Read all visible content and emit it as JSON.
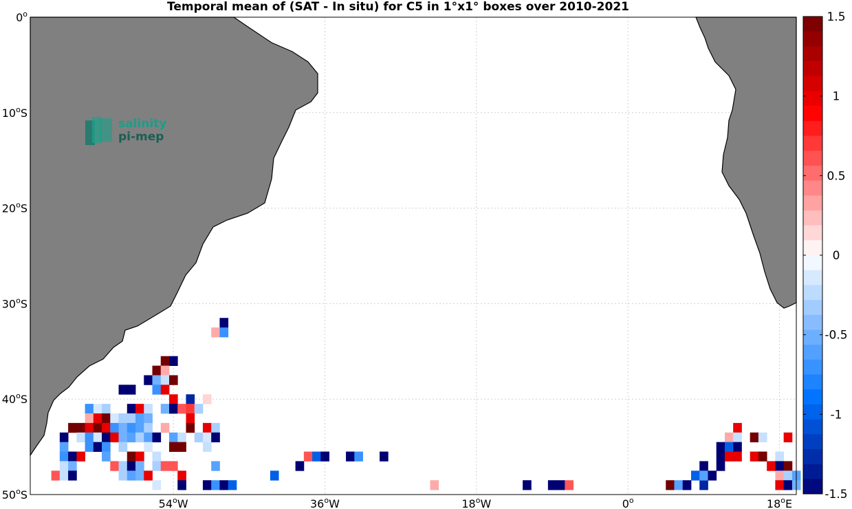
{
  "title": "Temporal mean of (SAT - In situ) for C5 in 1°x1° boxes over 2010-2021",
  "logo": {
    "line1": "salinity",
    "line2": "pi-mep"
  },
  "lat_ticks": [
    {
      "label": "0",
      "sup": "o",
      "suffix": "",
      "value": 0
    },
    {
      "label": "10",
      "sup": "o",
      "suffix": "S",
      "value": -10
    },
    {
      "label": "20",
      "sup": "o",
      "suffix": "S",
      "value": -20
    },
    {
      "label": "30",
      "sup": "o",
      "suffix": "S",
      "value": -30
    },
    {
      "label": "40",
      "sup": "o",
      "suffix": "S",
      "value": -40
    },
    {
      "label": "50",
      "sup": "o",
      "suffix": "S",
      "value": -50
    }
  ],
  "lon_ticks": [
    {
      "label": "54",
      "sup": "o",
      "suffix": "W",
      "value": -54
    },
    {
      "label": "36",
      "sup": "o",
      "suffix": "W",
      "value": -36
    },
    {
      "label": "18",
      "sup": "o",
      "suffix": "W",
      "value": -18
    },
    {
      "label": "0",
      "sup": "o",
      "suffix": "",
      "value": 0
    },
    {
      "label": "18",
      "sup": "o",
      "suffix": "E",
      "value": 18
    }
  ],
  "colorbar": {
    "min": -1.5,
    "max": 1.5,
    "steps": 32,
    "tick_labels": [
      "1.5",
      "1",
      "0.5",
      "0",
      "-0.5",
      "-1",
      "-1.5"
    ],
    "tick_values": [
      1.5,
      1,
      0.5,
      0,
      -0.5,
      -1,
      -1.5
    ]
  },
  "colors": {
    "land": "#808080",
    "grid": "#d0d0d0",
    "logo_teal": "#1a9e8a",
    "logo_dark": "#1b5e55"
  },
  "chart_data": {
    "type": "heatmap",
    "title": "Temporal mean of (SAT - In situ) for C5 in 1°x1° boxes over 2010-2021",
    "xlim": [
      -71,
      20
    ],
    "ylim": [
      -50,
      0
    ],
    "cells": [
      {
        "lon": -48,
        "lat": -32,
        "v": -1.5
      },
      {
        "lon": -49,
        "lat": -33,
        "v": 0.3
      },
      {
        "lon": -48,
        "lat": -33,
        "v": -0.7
      },
      {
        "lon": -55,
        "lat": -36,
        "v": 1.5
      },
      {
        "lon": -54,
        "lat": -36,
        "v": -1.5
      },
      {
        "lon": -56,
        "lat": -37,
        "v": 1.5
      },
      {
        "lon": -55,
        "lat": -37,
        "v": 0.3
      },
      {
        "lon": -57,
        "lat": -38,
        "v": -1.5
      },
      {
        "lon": -56,
        "lat": -38,
        "v": -0.5
      },
      {
        "lon": -55,
        "lat": -38,
        "v": -0.2
      },
      {
        "lon": -54,
        "lat": -38,
        "v": 1.5
      },
      {
        "lon": -60,
        "lat": -39,
        "v": -1.5
      },
      {
        "lon": -59,
        "lat": -39,
        "v": -1.5
      },
      {
        "lon": -56,
        "lat": -39,
        "v": -0.7
      },
      {
        "lon": -55,
        "lat": -39,
        "v": 1.0
      },
      {
        "lon": -54,
        "lat": -40,
        "v": 1.0
      },
      {
        "lon": -52,
        "lat": -40,
        "v": -1.3
      },
      {
        "lon": -50,
        "lat": -40,
        "v": 0.15
      },
      {
        "lon": -64,
        "lat": -41,
        "v": -0.7
      },
      {
        "lon": -63,
        "lat": -41,
        "v": -0.15
      },
      {
        "lon": -62,
        "lat": -41,
        "v": -0.3
      },
      {
        "lon": -59,
        "lat": -41,
        "v": -1.5
      },
      {
        "lon": -58,
        "lat": -41,
        "v": 1.0
      },
      {
        "lon": -57,
        "lat": -41,
        "v": -0.2
      },
      {
        "lon": -55,
        "lat": -41,
        "v": -0.5
      },
      {
        "lon": -54,
        "lat": -41,
        "v": -1.5
      },
      {
        "lon": -53,
        "lat": -41,
        "v": 0.6
      },
      {
        "lon": -52,
        "lat": -41,
        "v": 0.7
      },
      {
        "lon": -51,
        "lat": -41,
        "v": -0.3
      },
      {
        "lon": -64,
        "lat": -42,
        "v": 0.3
      },
      {
        "lon": -63,
        "lat": -42,
        "v": 1.0
      },
      {
        "lon": -62,
        "lat": -42,
        "v": 1.5
      },
      {
        "lon": -61,
        "lat": -42,
        "v": -0.15
      },
      {
        "lon": -60,
        "lat": -42,
        "v": -0.3
      },
      {
        "lon": -59,
        "lat": -42,
        "v": -0.3
      },
      {
        "lon": -58,
        "lat": -42,
        "v": -0.6
      },
      {
        "lon": -57,
        "lat": -42,
        "v": -0.5
      },
      {
        "lon": -52,
        "lat": -42,
        "v": 1.0
      },
      {
        "lon": -66,
        "lat": -43,
        "v": 1.5
      },
      {
        "lon": -65,
        "lat": -43,
        "v": 1.5
      },
      {
        "lon": -64,
        "lat": -43,
        "v": 1.0
      },
      {
        "lon": -63,
        "lat": -43,
        "v": 1.5
      },
      {
        "lon": -62,
        "lat": -43,
        "v": 1.0
      },
      {
        "lon": -61,
        "lat": -43,
        "v": -0.7
      },
      {
        "lon": -60,
        "lat": -43,
        "v": -0.5
      },
      {
        "lon": -59,
        "lat": -43,
        "v": -0.7
      },
      {
        "lon": -58,
        "lat": -43,
        "v": -0.6
      },
      {
        "lon": -57,
        "lat": -43,
        "v": -0.3
      },
      {
        "lon": -55,
        "lat": -43,
        "v": 0.3
      },
      {
        "lon": -52,
        "lat": -43,
        "v": 1.5
      },
      {
        "lon": -50,
        "lat": -43,
        "v": 1.0
      },
      {
        "lon": -49,
        "lat": -43,
        "v": -0.3
      },
      {
        "lon": -67,
        "lat": -44,
        "v": -1.5
      },
      {
        "lon": -65,
        "lat": -44,
        "v": -0.2
      },
      {
        "lon": -64,
        "lat": -44,
        "v": -0.7
      },
      {
        "lon": -63,
        "lat": -44,
        "v": -0.15
      },
      {
        "lon": -62,
        "lat": -44,
        "v": -1.5
      },
      {
        "lon": -61,
        "lat": -44,
        "v": 1.0
      },
      {
        "lon": -60,
        "lat": -44,
        "v": -0.5
      },
      {
        "lon": -59,
        "lat": -44,
        "v": -0.6
      },
      {
        "lon": -58,
        "lat": -44,
        "v": -0.3
      },
      {
        "lon": -57,
        "lat": -44,
        "v": -0.6
      },
      {
        "lon": -56,
        "lat": -44,
        "v": -1.5
      },
      {
        "lon": -54,
        "lat": -44,
        "v": -0.6
      },
      {
        "lon": -53,
        "lat": -44,
        "v": -0.2
      },
      {
        "lon": -51,
        "lat": -44,
        "v": -0.3
      },
      {
        "lon": -50,
        "lat": -44,
        "v": -0.15
      },
      {
        "lon": -49,
        "lat": -44,
        "v": -1.5
      },
      {
        "lon": -67,
        "lat": -45,
        "v": -0.6
      },
      {
        "lon": -64,
        "lat": -45,
        "v": -0.7
      },
      {
        "lon": -63,
        "lat": -45,
        "v": -1.5
      },
      {
        "lon": -62,
        "lat": -45,
        "v": -0.7
      },
      {
        "lon": -60,
        "lat": -45,
        "v": -0.3
      },
      {
        "lon": -57,
        "lat": -45,
        "v": -0.15
      },
      {
        "lon": -54,
        "lat": -45,
        "v": 1.5
      },
      {
        "lon": -53,
        "lat": -45,
        "v": 1.5
      },
      {
        "lon": -50,
        "lat": -45,
        "v": -0.2
      },
      {
        "lon": -67,
        "lat": -46,
        "v": -0.7
      },
      {
        "lon": -66,
        "lat": -46,
        "v": -1.5
      },
      {
        "lon": -65,
        "lat": -46,
        "v": 1.0
      },
      {
        "lon": -62,
        "lat": -46,
        "v": -0.6
      },
      {
        "lon": -59,
        "lat": -46,
        "v": 1.5
      },
      {
        "lon": -58,
        "lat": -46,
        "v": 1.0
      },
      {
        "lon": -56,
        "lat": -46,
        "v": -0.2
      },
      {
        "lon": -38,
        "lat": -46,
        "v": 0.6
      },
      {
        "lon": -37,
        "lat": -46,
        "v": -1.0
      },
      {
        "lon": -36,
        "lat": -46,
        "v": -1.5
      },
      {
        "lon": -33,
        "lat": -46,
        "v": -1.5
      },
      {
        "lon": -32,
        "lat": -46,
        "v": -0.7
      },
      {
        "lon": -29,
        "lat": -46,
        "v": -1.5
      },
      {
        "lon": -67,
        "lat": -47,
        "v": -0.2
      },
      {
        "lon": -66,
        "lat": -47,
        "v": -0.5
      },
      {
        "lon": -61,
        "lat": -47,
        "v": 0.6
      },
      {
        "lon": -60,
        "lat": -47,
        "v": -0.3
      },
      {
        "lon": -59,
        "lat": -47,
        "v": -1.5
      },
      {
        "lon": -58,
        "lat": -47,
        "v": -0.5
      },
      {
        "lon": -56,
        "lat": -47,
        "v": -0.3
      },
      {
        "lon": -55,
        "lat": -47,
        "v": 0.6
      },
      {
        "lon": -54,
        "lat": -47,
        "v": 0.6
      },
      {
        "lon": -49,
        "lat": -47,
        "v": -0.6
      },
      {
        "lon": -39,
        "lat": -47,
        "v": -1.5
      },
      {
        "lon": -68,
        "lat": -48,
        "v": 0.6
      },
      {
        "lon": -67,
        "lat": -48,
        "v": -0.2
      },
      {
        "lon": -66,
        "lat": -48,
        "v": -1.5
      },
      {
        "lon": -60,
        "lat": -48,
        "v": -0.3
      },
      {
        "lon": -59,
        "lat": -48,
        "v": -0.6
      },
      {
        "lon": -58,
        "lat": -48,
        "v": -0.5
      },
      {
        "lon": -57,
        "lat": -48,
        "v": 1.0
      },
      {
        "lon": -53,
        "lat": -48,
        "v": 1.0
      },
      {
        "lon": -42,
        "lat": -48,
        "v": -1.0
      },
      {
        "lon": -56,
        "lat": -49,
        "v": -0.15
      },
      {
        "lon": -53,
        "lat": -49,
        "v": -1.5
      },
      {
        "lon": -50,
        "lat": -49,
        "v": -1.5
      },
      {
        "lon": -49,
        "lat": -49,
        "v": -0.7
      },
      {
        "lon": -48,
        "lat": -49,
        "v": -1.5
      },
      {
        "lon": -47,
        "lat": -49,
        "v": -1.0
      },
      {
        "lon": -23,
        "lat": -49,
        "v": 0.3
      },
      {
        "lon": -12,
        "lat": -49,
        "v": -1.5
      },
      {
        "lon": -9,
        "lat": -49,
        "v": -1.5
      },
      {
        "lon": -8,
        "lat": -49,
        "v": -1.5
      },
      {
        "lon": -7,
        "lat": -49,
        "v": 0.6
      },
      {
        "lon": 5,
        "lat": -49,
        "v": 1.5
      },
      {
        "lon": 6,
        "lat": -49,
        "v": -0.6
      },
      {
        "lon": 7,
        "lat": -49,
        "v": -1.5
      },
      {
        "lon": 9,
        "lat": -49,
        "v": -1.3
      },
      {
        "lon": 13,
        "lat": -43,
        "v": 1.0
      },
      {
        "lon": 12,
        "lat": -44,
        "v": 0.3
      },
      {
        "lon": 13,
        "lat": -44,
        "v": -0.2
      },
      {
        "lon": 15,
        "lat": -44,
        "v": 1.5
      },
      {
        "lon": 16,
        "lat": -44,
        "v": -0.2
      },
      {
        "lon": 19,
        "lat": -44,
        "v": 1.0
      },
      {
        "lon": 11,
        "lat": -45,
        "v": -1.5
      },
      {
        "lon": 12,
        "lat": -45,
        "v": -1.0
      },
      {
        "lon": 13,
        "lat": -45,
        "v": -1.5
      },
      {
        "lon": 11,
        "lat": -46,
        "v": -1.5
      },
      {
        "lon": 12,
        "lat": -46,
        "v": 1.0
      },
      {
        "lon": 13,
        "lat": -46,
        "v": 1.0
      },
      {
        "lon": 15,
        "lat": -46,
        "v": 1.0
      },
      {
        "lon": 16,
        "lat": -46,
        "v": 1.5
      },
      {
        "lon": 18,
        "lat": -46,
        "v": -0.2
      },
      {
        "lon": 9,
        "lat": -47,
        "v": -1.5
      },
      {
        "lon": 11,
        "lat": -47,
        "v": -1.5
      },
      {
        "lon": 17,
        "lat": -47,
        "v": 1.0
      },
      {
        "lon": 18,
        "lat": -47,
        "v": -1.5
      },
      {
        "lon": 19,
        "lat": -47,
        "v": 1.5
      },
      {
        "lon": 8,
        "lat": -48,
        "v": -1.0
      },
      {
        "lon": 9,
        "lat": -48,
        "v": -0.6
      },
      {
        "lon": 10,
        "lat": -48,
        "v": -1.5
      },
      {
        "lon": 18,
        "lat": -48,
        "v": 0.3
      },
      {
        "lon": 19,
        "lat": -48,
        "v": -0.3
      },
      {
        "lon": 20,
        "lat": -48,
        "v": -0.6
      },
      {
        "lon": 18,
        "lat": -49,
        "v": 1.0
      },
      {
        "lon": 19,
        "lat": -49,
        "v": -1.5
      },
      {
        "lon": 20,
        "lat": -49,
        "v": -0.5
      }
    ]
  }
}
